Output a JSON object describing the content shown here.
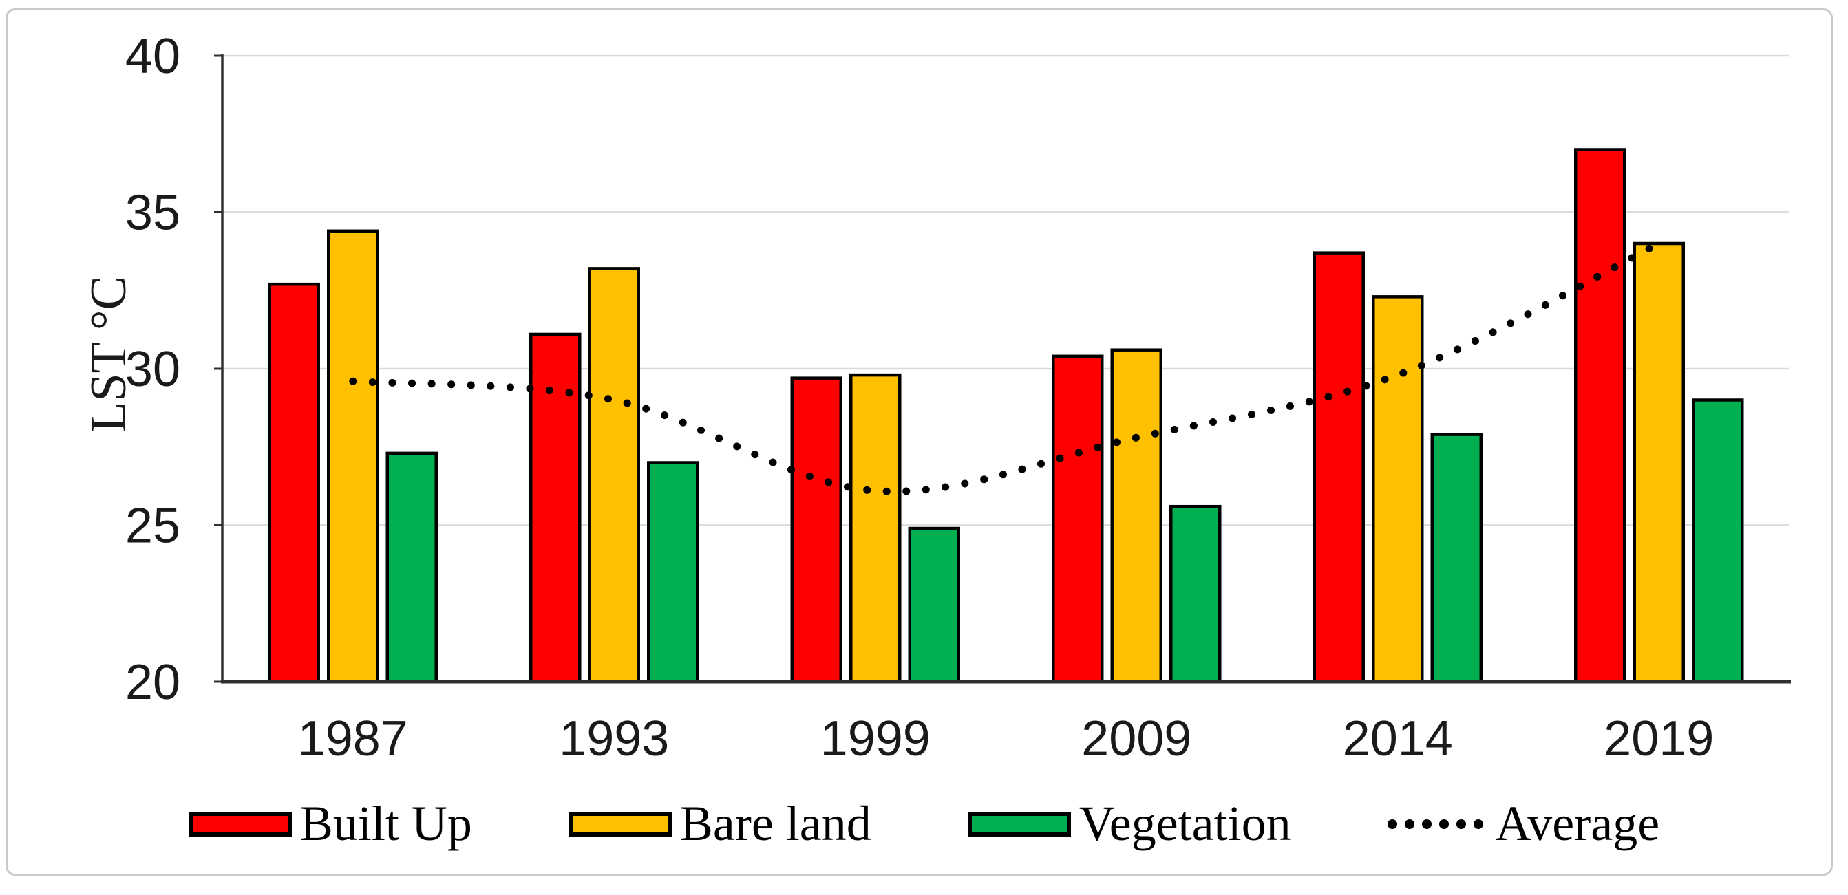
{
  "chart_data": {
    "type": "bar",
    "title": "",
    "xlabel": "",
    "ylabel": "LST °C",
    "categories": [
      "1987",
      "1993",
      "1999",
      "2009",
      "2014",
      "2019"
    ],
    "series": [
      {
        "name": "Built Up",
        "type": "bar",
        "color": "#FF0000",
        "values": [
          32.7,
          31.1,
          29.7,
          30.4,
          33.7,
          37.0
        ]
      },
      {
        "name": "Bare land",
        "type": "bar",
        "color": "#FFC000",
        "values": [
          34.4,
          33.2,
          29.8,
          30.6,
          32.3,
          34.0
        ]
      },
      {
        "name": "Vegetation",
        "type": "bar",
        "color": "#00B050",
        "values": [
          27.3,
          27.0,
          24.9,
          25.6,
          27.9,
          29.0
        ]
      },
      {
        "name": "Average",
        "type": "dotted_line",
        "color": "#000000",
        "values": [
          29.6,
          29.0,
          26.1,
          27.8,
          29.8,
          34.0
        ]
      }
    ],
    "ylim": [
      20,
      40
    ],
    "yticks": [
      20,
      25,
      30,
      35,
      40
    ],
    "grid": true,
    "legend_position": "bottom"
  },
  "legend": {
    "items": [
      {
        "label": "Built Up"
      },
      {
        "label": "Bare land"
      },
      {
        "label": "Vegetation"
      },
      {
        "label": "Average"
      }
    ]
  },
  "style": {
    "grid_color": "#d9d9d9",
    "axis_color": "#303030",
    "bar_border_color": "#000000",
    "frame_border_color": "#c9c9c9",
    "background": "#ffffff"
  }
}
